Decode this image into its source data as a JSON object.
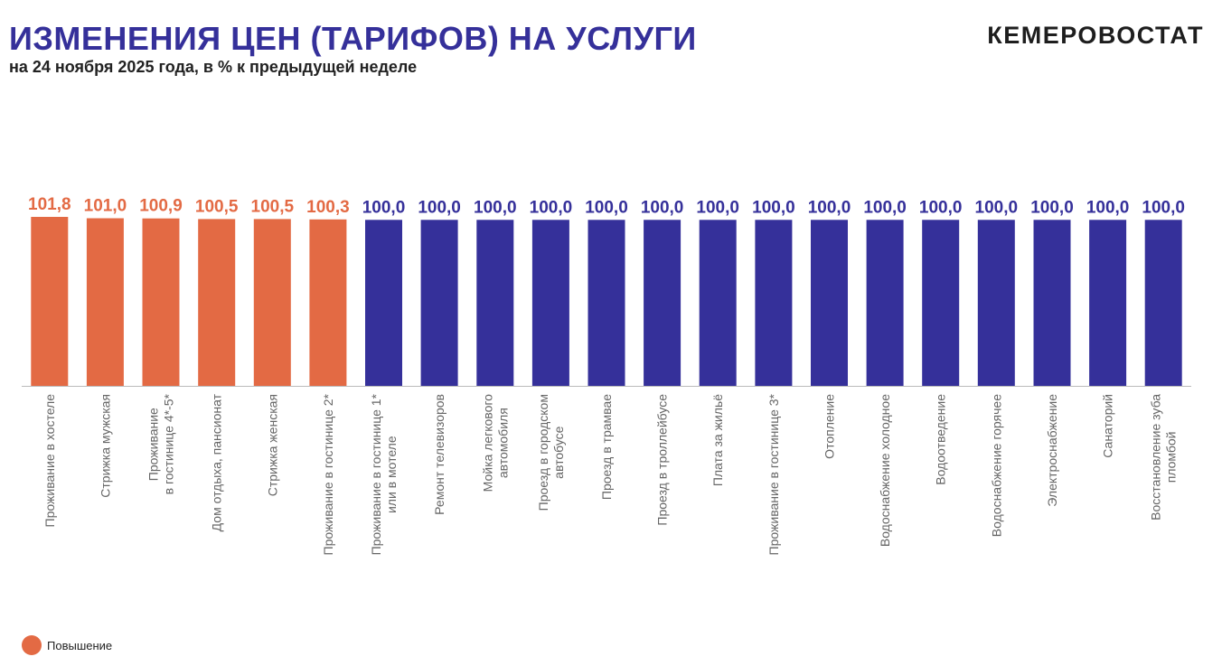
{
  "header": {
    "title": "ИЗМЕНЕНИЯ ЦЕН (ТАРИФОВ) НА УСЛУГИ",
    "subtitle": "на 24 ноября 2025 года, в % к предыдущей неделе",
    "brand": "КЕМЕРОВОСТАТ"
  },
  "legend": {
    "label": "Повышение",
    "color": "#e36a44"
  },
  "colors": {
    "increase": "#e36a44",
    "unchanged": "#35309a",
    "axis": "#bbbbbb",
    "category_text": "#666666"
  },
  "chart_data": {
    "type": "bar",
    "title": "ИЗМЕНЕНИЯ ЦЕН (ТАРИФОВ) НА УСЛУГИ",
    "subtitle": "на 24 ноября 2025 года, в % к предыдущей неделе",
    "categories": [
      [
        "Проживание в хостеле"
      ],
      [
        "Стрижка мужская"
      ],
      [
        "Проживание",
        "в гостинице 4*-5*"
      ],
      [
        "Дом отдыха, пансионат"
      ],
      [
        "Стрижка женская"
      ],
      [
        "Проживание в гостинице 2*"
      ],
      [
        "Проживание в гостинице 1*",
        "или в мотеле"
      ],
      [
        "Ремонт телевизоров"
      ],
      [
        "Мойка легкового",
        "автомобиля"
      ],
      [
        "Проезд в городском",
        "автобусе"
      ],
      [
        "Проезд в трамвае"
      ],
      [
        "Проезд в троллейбусе"
      ],
      [
        "Плата за жильё"
      ],
      [
        "Проживание в гостинице 3*"
      ],
      [
        "Отопление"
      ],
      [
        "Водоснабжение холодное"
      ],
      [
        "Водоотведение"
      ],
      [
        "Водоснабжение горячее"
      ],
      [
        "Электроснабжение"
      ],
      [
        "Санаторий"
      ],
      [
        "Восстановление зуба",
        "пломбой"
      ]
    ],
    "values": [
      101.8,
      101.0,
      100.9,
      100.5,
      100.5,
      100.3,
      100.0,
      100.0,
      100.0,
      100.0,
      100.0,
      100.0,
      100.0,
      100.0,
      100.0,
      100.0,
      100.0,
      100.0,
      100.0,
      100.0,
      100.0
    ],
    "labels": [
      "101,8",
      "101,0",
      "100,9",
      "100,5",
      "100,5",
      "100,3",
      "100,0",
      "100,0",
      "100,0",
      "100,0",
      "100,0",
      "100,0",
      "100,0",
      "100,0",
      "100,0",
      "100,0",
      "100,0",
      "100,0",
      "100,0",
      "100,0",
      "100,0"
    ],
    "series_flags": [
      "increase",
      "increase",
      "increase",
      "increase",
      "increase",
      "increase",
      "unchanged",
      "unchanged",
      "unchanged",
      "unchanged",
      "unchanged",
      "unchanged",
      "unchanged",
      "unchanged",
      "unchanged",
      "unchanged",
      "unchanged",
      "unchanged",
      "unchanged",
      "unchanged",
      "unchanged"
    ],
    "ylim": [
      0,
      101.8
    ],
    "grid": false,
    "legend_position": "bottom-left"
  }
}
